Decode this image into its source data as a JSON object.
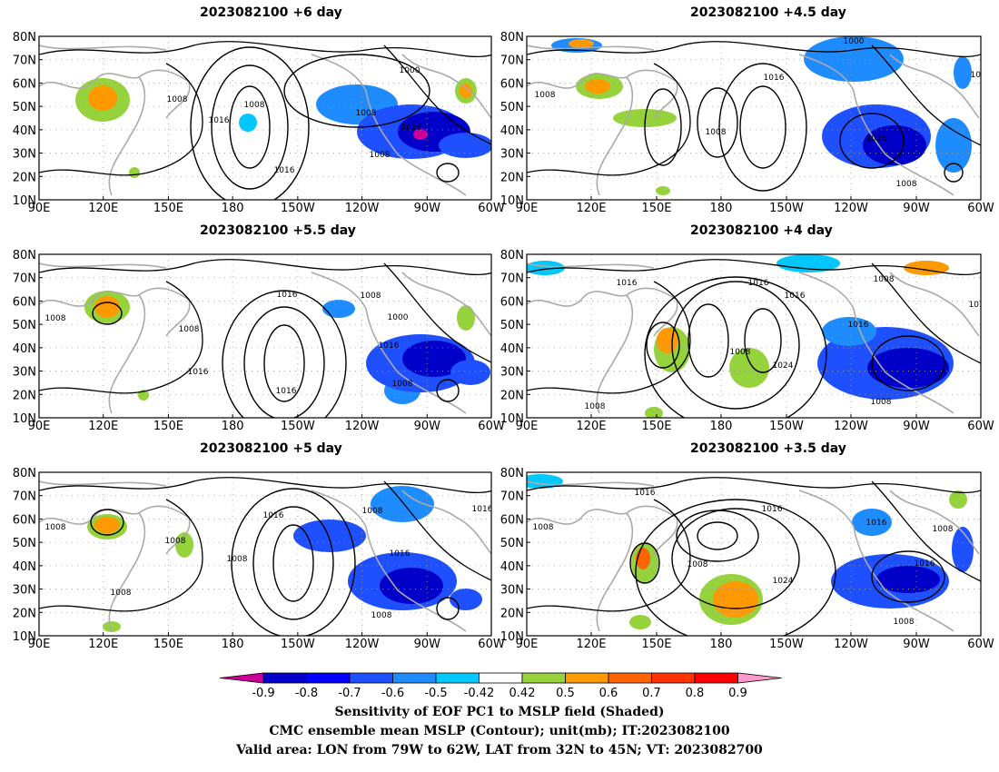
{
  "panels": [
    {
      "title": "2023082100  +6 day"
    },
    {
      "title": "2023082100  +4.5 day"
    },
    {
      "title": "2023082100  +5.5 day"
    },
    {
      "title": "2023082100  +4 day"
    },
    {
      "title": "2023082100  +5 day"
    },
    {
      "title": "2023082100  +3.5 day"
    }
  ],
  "axes": {
    "lat_labels": [
      "80N",
      "70N",
      "60N",
      "50N",
      "40N",
      "30N",
      "20N",
      "10N"
    ],
    "lon_labels": [
      "90E",
      "120E",
      "150E",
      "180",
      "150W",
      "120W",
      "90W",
      "60W"
    ]
  },
  "contour_labels": [
    "1016",
    "1008",
    "1000",
    "1024"
  ],
  "colorbar": {
    "labels": [
      "-0.9",
      "-0.8",
      "-0.7",
      "-0.6",
      "-0.5",
      "-0.42",
      "0.42",
      "0.5",
      "0.6",
      "0.7",
      "0.8",
      "0.9"
    ],
    "colors": [
      "#cc0099",
      "#0000c8",
      "#0000ff",
      "#1e50ff",
      "#1e8cff",
      "#00c8ff",
      "#ffffff",
      "#96d23c",
      "#ff9900",
      "#ff6400",
      "#ff3200",
      "#ff0000",
      "#ff99cc"
    ]
  },
  "caption": {
    "line1": "Sensitivity of EOF PC1 to MSLP field (Shaded)",
    "line2": "CMC ensemble mean MSLP (Contour); unit(mb); IT:2023082100",
    "line3": "Valid area: LON from 79W to 62W, LAT from 32N to 45N; VT: 2023082700"
  }
}
